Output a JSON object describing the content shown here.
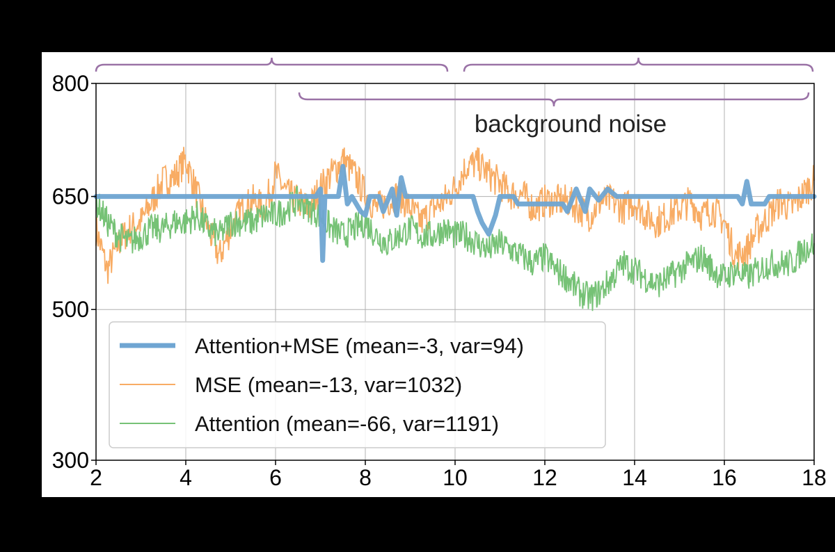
{
  "chart_data": {
    "type": "line",
    "title": "",
    "xlabel": "",
    "ylabel": "",
    "xlim": [
      2,
      18
    ],
    "ylim": [
      300,
      800
    ],
    "xticks": [
      "2",
      "4",
      "6",
      "8",
      "10",
      "12",
      "14",
      "16",
      "18"
    ],
    "yticks": [
      "300",
      "500",
      "650",
      "800"
    ],
    "grid": true,
    "legend_placement": "lower-left",
    "annotation": "background noise",
    "colors": {
      "attention_mse": "#6fa5d2",
      "mse": "#f8ac64",
      "attention": "#76c276",
      "brace": "#9a72a6"
    },
    "x": [
      2,
      2.25,
      2.5,
      2.75,
      3,
      3.25,
      3.5,
      3.75,
      4,
      4.25,
      4.5,
      4.75,
      5,
      5.25,
      5.5,
      5.75,
      6,
      6.25,
      6.5,
      6.75,
      7,
      7.25,
      7.5,
      7.75,
      8,
      8.25,
      8.5,
      8.75,
      9,
      9.25,
      9.5,
      9.75,
      10,
      10.25,
      10.5,
      10.75,
      11,
      11.25,
      11.5,
      11.75,
      12,
      12.25,
      12.5,
      12.75,
      13,
      13.25,
      13.5,
      13.75,
      14,
      14.25,
      14.5,
      14.75,
      15,
      15.25,
      15.5,
      15.75,
      16,
      16.25,
      16.5,
      16.75,
      17,
      17.25,
      17.5,
      17.75,
      18
    ],
    "series": [
      {
        "name": "MSE (mean=-13, var=1032)",
        "values": [
          607,
          552,
          588,
          607,
          616,
          644,
          671,
          676,
          699,
          653,
          607,
          570,
          607,
          634,
          644,
          634,
          680,
          653,
          644,
          634,
          662,
          680,
          699,
          680,
          653,
          634,
          644,
          653,
          634,
          616,
          634,
          644,
          662,
          690,
          694,
          680,
          667,
          653,
          653,
          634,
          644,
          644,
          644,
          634,
          625,
          644,
          644,
          634,
          644,
          625,
          616,
          625,
          634,
          644,
          625,
          634,
          616,
          570,
          579,
          607,
          625,
          644,
          634,
          653,
          671
        ]
      },
      {
        "name": "Attention (mean=-66, var=1191)",
        "values": [
          644,
          616,
          598,
          588,
          598,
          607,
          607,
          616,
          616,
          625,
          607,
          598,
          616,
          616,
          616,
          625,
          625,
          634,
          644,
          634,
          625,
          607,
          598,
          607,
          616,
          598,
          588,
          598,
          607,
          598,
          598,
          607,
          598,
          598,
          588,
          579,
          588,
          579,
          570,
          561,
          570,
          552,
          542,
          524,
          515,
          524,
          542,
          561,
          552,
          542,
          533,
          542,
          552,
          561,
          570,
          552,
          542,
          552,
          542,
          552,
          561,
          561,
          561,
          579,
          588
        ]
      },
      {
        "name": "Attention+MSE (mean=-3, var=94)",
        "points": [
          [
            2,
            650
          ],
          [
            6.9,
            650
          ],
          [
            7.0,
            660
          ],
          [
            7.05,
            565
          ],
          [
            7.1,
            650
          ],
          [
            7.4,
            650
          ],
          [
            7.5,
            690
          ],
          [
            7.6,
            640
          ],
          [
            7.7,
            650
          ],
          [
            7.9,
            630
          ],
          [
            8.0,
            625
          ],
          [
            8.1,
            650
          ],
          [
            8.3,
            650
          ],
          [
            8.4,
            630
          ],
          [
            8.6,
            660
          ],
          [
            8.7,
            625
          ],
          [
            8.8,
            675
          ],
          [
            8.9,
            650
          ],
          [
            10.4,
            650
          ],
          [
            10.5,
            630
          ],
          [
            10.6,
            615
          ],
          [
            10.75,
            600
          ],
          [
            10.9,
            625
          ],
          [
            11.0,
            650
          ],
          [
            11.3,
            650
          ],
          [
            11.4,
            640
          ],
          [
            12.4,
            640
          ],
          [
            12.5,
            630
          ],
          [
            12.7,
            660
          ],
          [
            12.9,
            630
          ],
          [
            13.0,
            660
          ],
          [
            13.2,
            645
          ],
          [
            13.4,
            660
          ],
          [
            13.6,
            650
          ],
          [
            16.3,
            650
          ],
          [
            16.4,
            640
          ],
          [
            16.5,
            670
          ],
          [
            16.6,
            640
          ],
          [
            16.9,
            640
          ],
          [
            17.0,
            650
          ],
          [
            18,
            650
          ]
        ]
      }
    ],
    "legend": [
      "Attention+MSE (mean=-3, var=94)",
      "MSE (mean=-13, var=1032)",
      "Attention (mean=-66, var=1191)"
    ]
  }
}
